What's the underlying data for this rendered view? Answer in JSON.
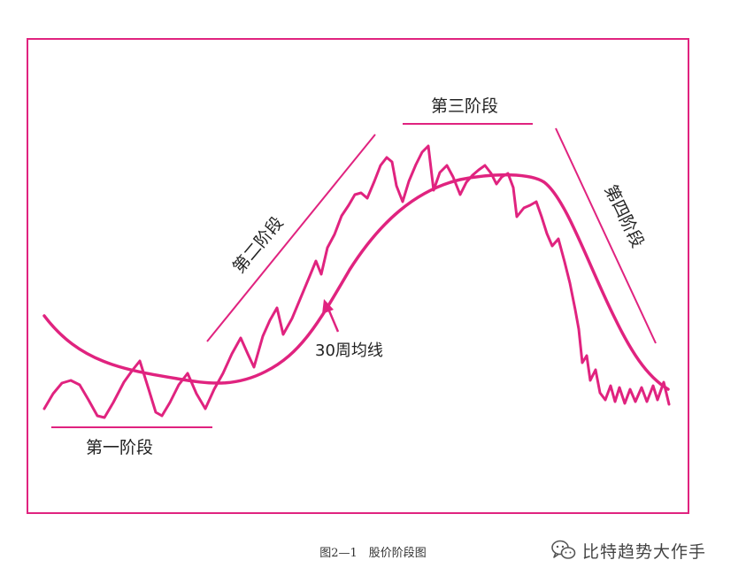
{
  "figure": {
    "stage1_label": "第一阶段",
    "stage2_label": "第二阶段",
    "stage3_label": "第三阶段",
    "stage4_label": "第四阶段",
    "ma_label": "30周均线"
  },
  "caption": "图2—1　股价阶段图",
  "watermark": {
    "text": "比特趋势大作手",
    "icon": "wechat-icon"
  },
  "colors": {
    "accent": "#e0237f",
    "frame": "#e0237f",
    "text": "#222222"
  }
}
